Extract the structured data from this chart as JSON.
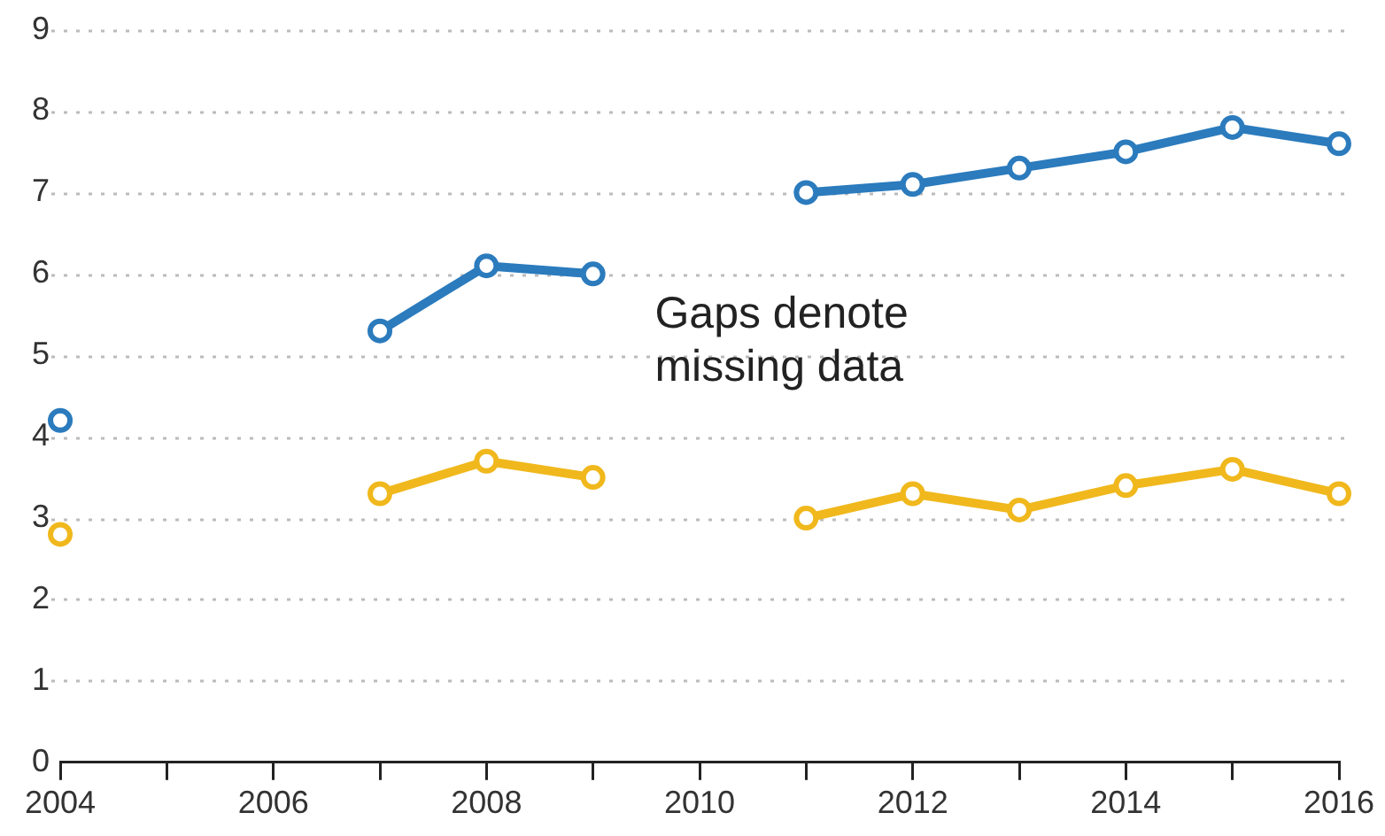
{
  "chart_data": {
    "type": "line",
    "x": [
      2004,
      2005,
      2006,
      2007,
      2008,
      2009,
      2010,
      2011,
      2012,
      2013,
      2014,
      2015,
      2016
    ],
    "series": [
      {
        "color": "#2b7bbd",
        "values": [
          4.2,
          null,
          null,
          5.3,
          6.1,
          6.0,
          null,
          7.0,
          7.1,
          7.3,
          7.5,
          7.8,
          7.6
        ]
      },
      {
        "color": "#f0b81c",
        "values": [
          2.8,
          null,
          null,
          3.3,
          3.7,
          3.5,
          null,
          3.0,
          3.3,
          3.1,
          3.4,
          3.6,
          3.3
        ]
      }
    ],
    "xlim": [
      2004,
      2016
    ],
    "xticks": [
      2004,
      {
        "value": 2005,
        "label": null
      },
      2006,
      {
        "value": 2007,
        "label": null
      },
      2008,
      {
        "value": 2009,
        "label": null
      },
      2010,
      {
        "value": 2011,
        "label": null
      },
      2012,
      {
        "value": 2013,
        "label": null
      },
      2014,
      {
        "value": 2015,
        "label": null
      },
      2016
    ],
    "ylim": [
      0,
      9
    ],
    "yticks": [
      0,
      1,
      2,
      3,
      4,
      5,
      6,
      7,
      8,
      9
    ],
    "grid": "y",
    "marker": "circle",
    "line_style": "solid",
    "legend": false,
    "annotations": [
      "Gaps denote missing data"
    ]
  }
}
